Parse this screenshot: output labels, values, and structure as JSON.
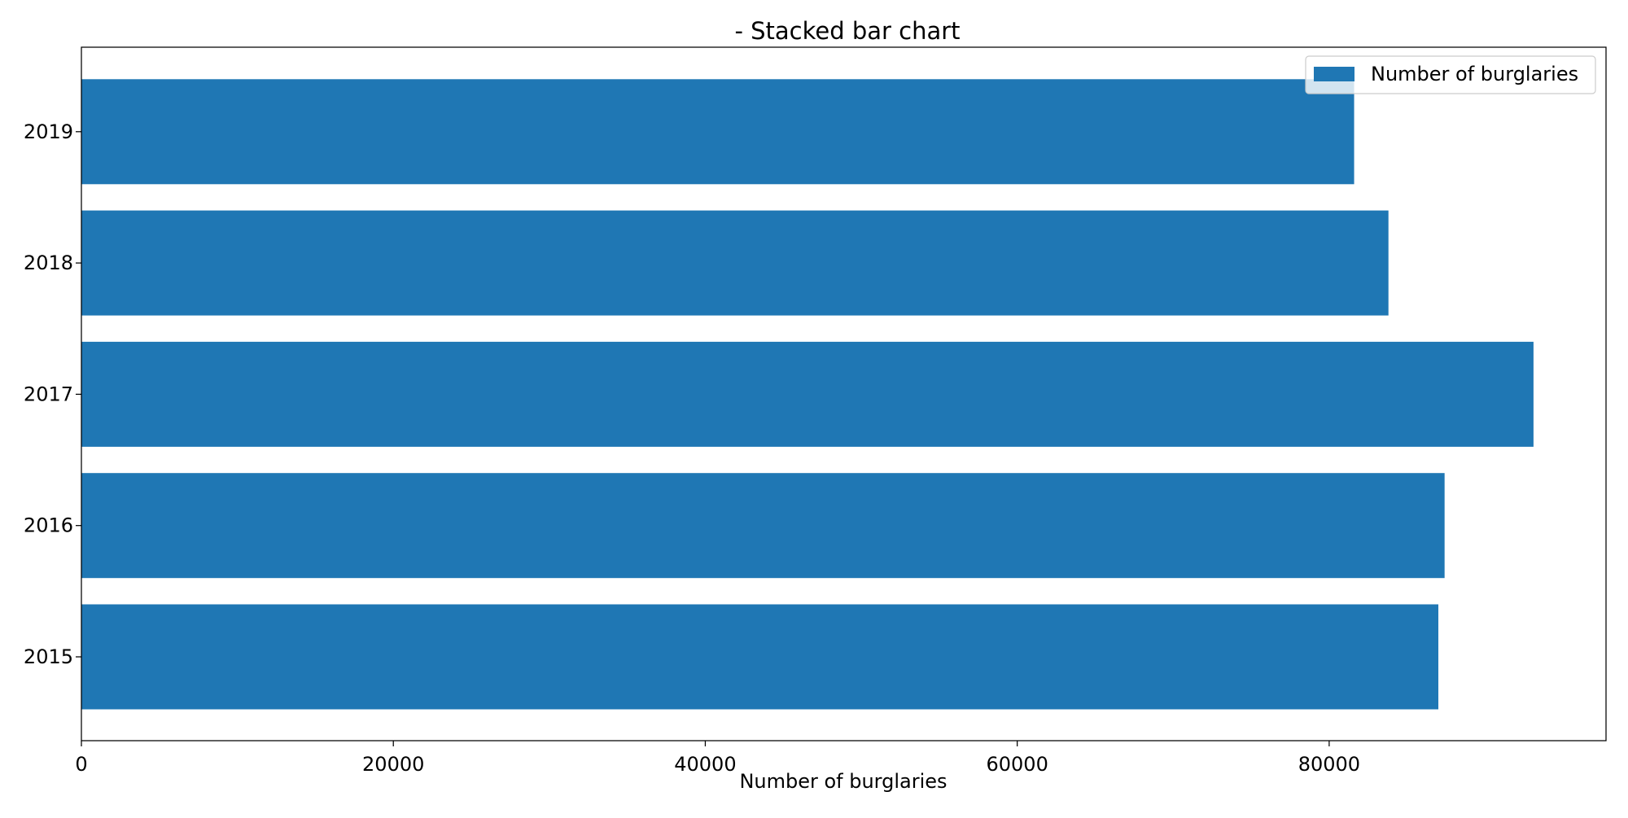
{
  "chart_data": {
    "type": "bar",
    "orientation": "horizontal",
    "title": "- Stacked bar chart",
    "xlabel": "Number of burglaries",
    "ylabel": "",
    "categories": [
      "2015",
      "2016",
      "2017",
      "2018",
      "2019"
    ],
    "series": [
      {
        "name": "Number of burglaries",
        "color": "#1f77b4",
        "values": [
          87000,
          87400,
          93100,
          83800,
          81600
        ]
      }
    ],
    "xlim": [
      0,
      97750
    ],
    "xticks": [
      0,
      20000,
      40000,
      60000,
      80000
    ],
    "xtick_labels": [
      "0",
      "20000",
      "40000",
      "60000",
      "80000"
    ],
    "legend_position": "top-right",
    "grid": false
  }
}
